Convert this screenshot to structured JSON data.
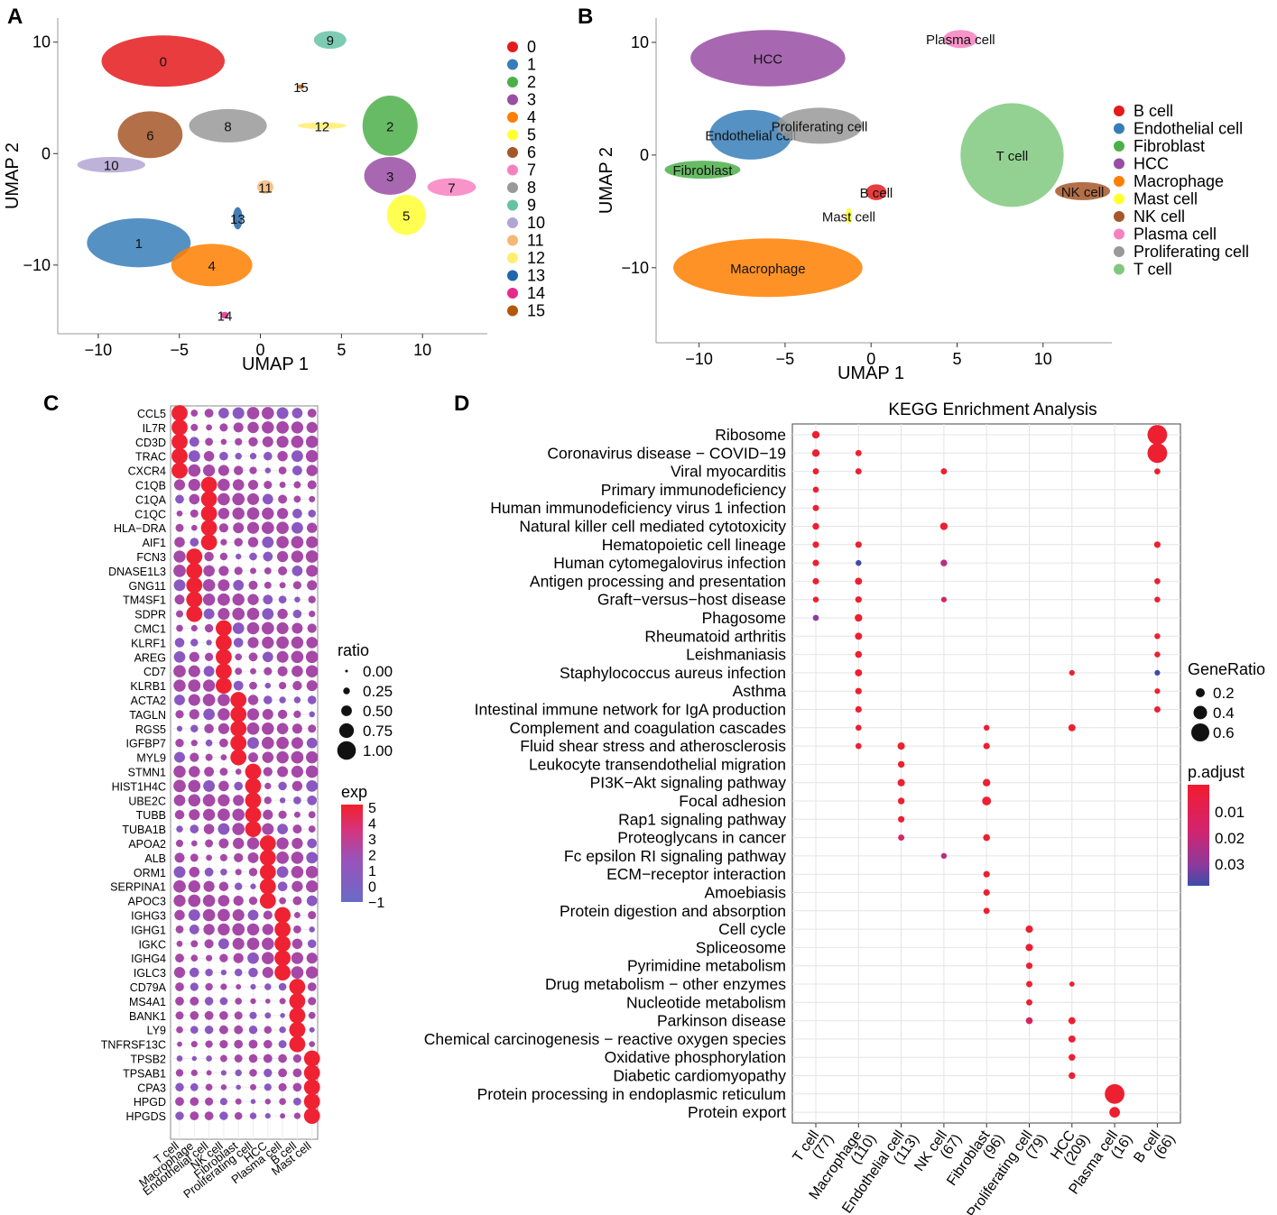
{
  "chart_data": [
    {
      "panel": "A",
      "type": "scatter",
      "xlabel": "UMAP 1",
      "ylabel": "UMAP 2",
      "xlim": [
        -12.5,
        14
      ],
      "ylim": [
        -16,
        12
      ],
      "xticks": [
        -10,
        -5,
        0,
        5,
        10
      ],
      "yticks": [
        10,
        0,
        -10
      ],
      "legend": [
        {
          "label": "0",
          "color": "#e41a1c"
        },
        {
          "label": "1",
          "color": "#377eb8"
        },
        {
          "label": "2",
          "color": "#4daf4a"
        },
        {
          "label": "3",
          "color": "#984ea3"
        },
        {
          "label": "4",
          "color": "#ff7f00"
        },
        {
          "label": "5",
          "color": "#ffff33"
        },
        {
          "label": "6",
          "color": "#a65628"
        },
        {
          "label": "7",
          "color": "#f781bf"
        },
        {
          "label": "8",
          "color": "#999999"
        },
        {
          "label": "9",
          "color": "#66c2a5"
        },
        {
          "label": "10",
          "color": "#b3a5d3"
        },
        {
          "label": "11",
          "color": "#f5b776"
        },
        {
          "label": "12",
          "color": "#ffed6f"
        },
        {
          "label": "13",
          "color": "#2166ac"
        },
        {
          "label": "14",
          "color": "#e7298a"
        },
        {
          "label": "15",
          "color": "#b35806"
        }
      ],
      "clusters": [
        {
          "label": "0",
          "color": "#e41a1c",
          "x": -6,
          "y": 8.3,
          "rx": 3.8,
          "ry": 2.3
        },
        {
          "label": "1",
          "color": "#377eb8",
          "x": -7.5,
          "y": -8,
          "rx": 3.2,
          "ry": 2.2
        },
        {
          "label": "2",
          "color": "#4daf4a",
          "x": 8,
          "y": 2.5,
          "rx": 1.7,
          "ry": 2.7
        },
        {
          "label": "3",
          "color": "#984ea3",
          "x": 8,
          "y": -2,
          "rx": 1.6,
          "ry": 1.7
        },
        {
          "label": "4",
          "color": "#ff7f00",
          "x": -3,
          "y": -10,
          "rx": 2.5,
          "ry": 1.9
        },
        {
          "label": "5",
          "color": "#ffff33",
          "x": 9,
          "y": -5.5,
          "rx": 1.2,
          "ry": 1.8
        },
        {
          "label": "6",
          "color": "#a65628",
          "x": -6.8,
          "y": 1.7,
          "rx": 2,
          "ry": 2.1
        },
        {
          "label": "7",
          "color": "#f781bf",
          "x": 11.8,
          "y": -3,
          "rx": 1.5,
          "ry": 0.8
        },
        {
          "label": "8",
          "color": "#999999",
          "x": -2,
          "y": 2.5,
          "rx": 2.4,
          "ry": 1.5
        },
        {
          "label": "9",
          "color": "#66c2a5",
          "x": 4.3,
          "y": 10.2,
          "rx": 1.0,
          "ry": 0.8
        },
        {
          "label": "10",
          "color": "#b3a5d3",
          "x": -9.2,
          "y": -1,
          "rx": 2.1,
          "ry": 0.7
        },
        {
          "label": "11",
          "color": "#f5b776",
          "x": 0.3,
          "y": -3,
          "rx": 0.5,
          "ry": 0.6
        },
        {
          "label": "12",
          "color": "#ffed6f",
          "x": 3.8,
          "y": 2.5,
          "rx": 1.5,
          "ry": 0.3
        },
        {
          "label": "13",
          "color": "#2166ac",
          "x": -1.4,
          "y": -5.8,
          "rx": 0.3,
          "ry": 1.0
        },
        {
          "label": "14",
          "color": "#e7298a",
          "x": -2.2,
          "y": -14.5,
          "rx": 0.25,
          "ry": 0.3
        },
        {
          "label": "15",
          "color": "#b35806",
          "x": 2.5,
          "y": 6,
          "rx": 0.2,
          "ry": 0.2
        }
      ]
    },
    {
      "panel": "B",
      "type": "scatter",
      "xlabel": "UMAP 1",
      "ylabel": "UMAP 2",
      "xlim": [
        -12.5,
        14
      ],
      "ylim": [
        -16.5,
        12
      ],
      "xticks": [
        -10,
        -5,
        0,
        5,
        10
      ],
      "yticks": [
        10,
        0,
        -10
      ],
      "legend": [
        {
          "label": "B cell",
          "color": "#e41a1c"
        },
        {
          "label": "Endothelial cell",
          "color": "#377eb8"
        },
        {
          "label": "Fibroblast",
          "color": "#4daf4a"
        },
        {
          "label": "HCC",
          "color": "#984ea3"
        },
        {
          "label": "Macrophage",
          "color": "#ff7f00"
        },
        {
          "label": "Mast cell",
          "color": "#ffff33"
        },
        {
          "label": "NK cell",
          "color": "#a65628"
        },
        {
          "label": "Plasma cell",
          "color": "#f781bf"
        },
        {
          "label": "Proliferating cell",
          "color": "#999999"
        },
        {
          "label": "T cell",
          "color": "#7fc97f"
        }
      ],
      "clusters": [
        {
          "label": "HCC",
          "color": "#984ea3",
          "x": -6,
          "y": 8.6,
          "rx": 4.5,
          "ry": 2.5
        },
        {
          "label": "Endothelial cell",
          "color": "#377eb8",
          "x": -7,
          "y": 1.8,
          "rx": 2.4,
          "ry": 2.2
        },
        {
          "label": "Proliferating cell",
          "color": "#999999",
          "x": -3,
          "y": 2.6,
          "rx": 2.5,
          "ry": 1.6
        },
        {
          "label": "Fibroblast",
          "color": "#4daf4a",
          "x": -9.8,
          "y": -1.3,
          "rx": 2.2,
          "ry": 0.8
        },
        {
          "label": "Macrophage",
          "color": "#ff7f00",
          "x": -6,
          "y": -10,
          "rx": 5.5,
          "ry": 2.6
        },
        {
          "label": "B cell",
          "color": "#e41a1c",
          "x": 0.3,
          "y": -3.3,
          "rx": 0.6,
          "ry": 0.7
        },
        {
          "label": "T cell",
          "color": "#7fc97f",
          "x": 8.2,
          "y": 0,
          "rx": 3.0,
          "ry": 4.6
        },
        {
          "label": "NK cell",
          "color": "#a65628",
          "x": 12.3,
          "y": -3.2,
          "rx": 1.6,
          "ry": 0.8
        },
        {
          "label": "Plasma cell",
          "color": "#f781bf",
          "x": 5.2,
          "y": 10.3,
          "rx": 1.0,
          "ry": 0.8
        },
        {
          "label": "Mast cell",
          "color": "#ffff33",
          "x": -1.3,
          "y": -5.4,
          "rx": 0.2,
          "ry": 0.7
        }
      ]
    },
    {
      "panel": "C",
      "type": "dotplot",
      "genes": [
        "CCL5",
        "IL7R",
        "CD3D",
        "TRAC",
        "CXCR4",
        "C1QB",
        "C1QA",
        "C1QC",
        "HLA−DRA",
        "AIF1",
        "FCN3",
        "DNASE1L3",
        "GNG11",
        "TM4SF1",
        "SDPR",
        "CMC1",
        "KLRF1",
        "AREG",
        "CD7",
        "KLRB1",
        "ACTA2",
        "TAGLN",
        "RGS5",
        "IGFBP7",
        "MYL9",
        "STMN1",
        "HIST1H4C",
        "UBE2C",
        "TUBB",
        "TUBA1B",
        "APOA2",
        "ALB",
        "ORM1",
        "SERPINA1",
        "APOC3",
        "IGHG3",
        "IGHG1",
        "IGKC",
        "IGHG4",
        "IGLC3",
        "CD79A",
        "MS4A1",
        "BANK1",
        "LY9",
        "TNFRSF13C",
        "TPSB2",
        "TPSAB1",
        "CPA3",
        "HPGD",
        "HPGDS"
      ],
      "groups": [
        "T cell",
        "Macrophage",
        "Endothelial cell",
        "NK cell",
        "Fibroblast",
        "Proliferating cell",
        "HCC",
        "Plasma cell",
        "B cell",
        "Mast cell"
      ],
      "gene_blocks": [
        [
          0,
          4
        ],
        [
          5,
          9
        ],
        [
          10,
          14
        ],
        [
          15,
          19
        ],
        [
          20,
          24
        ],
        [
          25,
          29
        ],
        [
          30,
          34
        ],
        [
          35,
          39
        ],
        [
          40,
          44
        ],
        [
          45,
          49
        ]
      ],
      "marker_group": [
        0,
        2,
        1,
        3,
        4,
        5,
        6,
        7,
        8,
        9
      ],
      "legend_ratio_title": "ratio",
      "legend_ratio": [
        "0.00",
        "0.25",
        "0.50",
        "0.75",
        "1.00"
      ],
      "legend_exp_title": "exp",
      "legend_exp": [
        "5",
        "4",
        "3",
        "2",
        "1",
        "0",
        "−1"
      ]
    },
    {
      "panel": "D",
      "type": "dotplot",
      "title": "KEGG Enrichment Analysis",
      "groups": [
        {
          "name": "T cell",
          "n": "(77)"
        },
        {
          "name": "Macrophage",
          "n": "(110)"
        },
        {
          "name": "Endothelial cell",
          "n": "(113)"
        },
        {
          "name": "NK cell",
          "n": "(67)"
        },
        {
          "name": "Fibroblast",
          "n": "(96)"
        },
        {
          "name": "Proliferating cell",
          "n": "(79)"
        },
        {
          "name": "HCC",
          "n": "(209)"
        },
        {
          "name": "Plasma cell",
          "n": "(16)"
        },
        {
          "name": "B cell",
          "n": "(66)"
        }
      ],
      "pathways": [
        "Ribosome",
        "Coronavirus disease − COVID−19",
        "Viral myocarditis",
        "Primary immunodeficiency",
        "Human immunodeficiency virus 1 infection",
        "Natural killer cell mediated cytotoxicity",
        "Hematopoietic cell lineage",
        "Human cytomegalovirus infection",
        "Antigen processing and presentation",
        "Graft−versus−host disease",
        "Phagosome",
        "Rheumatoid arthritis",
        "Leishmaniasis",
        "Staphylococcus aureus infection",
        "Asthma",
        "Intestinal immune network for IgA production",
        "Complement and coagulation cascades",
        "Fluid shear stress and atherosclerosis",
        "Leukocyte transendothelial migration",
        "PI3K−Akt signaling pathway",
        "Focal adhesion",
        "Rap1 signaling pathway",
        "Proteoglycans in cancer",
        "Fc epsilon RI signaling pathway",
        "ECM−receptor interaction",
        "Amoebiasis",
        "Protein digestion and absorption",
        "Cell cycle",
        "Spliceosome",
        "Pyrimidine metabolism",
        "Drug metabolism − other enzymes",
        "Nucleotide metabolism",
        "Parkinson disease",
        "Chemical carcinogenesis − reactive oxygen species",
        "Oxidative phosphorylation",
        "Diabetic cardiomyopathy",
        "Protein processing in endoplasmic reticulum",
        "Protein export"
      ],
      "points": [
        [
          0,
          0,
          0.14,
          0.002
        ],
        [
          0,
          8,
          0.7,
          0.002
        ],
        [
          1,
          0,
          0.14,
          0.002
        ],
        [
          1,
          1,
          0.08,
          0.002
        ],
        [
          1,
          8,
          0.7,
          0.002
        ],
        [
          2,
          0,
          0.08,
          0.002
        ],
        [
          2,
          1,
          0.08,
          0.002
        ],
        [
          2,
          3,
          0.08,
          0.002
        ],
        [
          2,
          8,
          0.07,
          0.002
        ],
        [
          3,
          0,
          0.07,
          0.002
        ],
        [
          4,
          0,
          0.08,
          0.002
        ],
        [
          5,
          0,
          0.1,
          0.002
        ],
        [
          5,
          3,
          0.14,
          0.002
        ],
        [
          6,
          0,
          0.09,
          0.002
        ],
        [
          6,
          1,
          0.09,
          0.002
        ],
        [
          6,
          8,
          0.09,
          0.002
        ],
        [
          7,
          0,
          0.09,
          0.002
        ],
        [
          7,
          1,
          0.06,
          0.035
        ],
        [
          7,
          3,
          0.1,
          0.02
        ],
        [
          8,
          0,
          0.09,
          0.002
        ],
        [
          8,
          1,
          0.12,
          0.002
        ],
        [
          8,
          8,
          0.07,
          0.002
        ],
        [
          9,
          0,
          0.06,
          0.002
        ],
        [
          9,
          1,
          0.09,
          0.002
        ],
        [
          9,
          3,
          0.05,
          0.012
        ],
        [
          9,
          8,
          0.06,
          0.002
        ],
        [
          10,
          0,
          0.07,
          0.028
        ],
        [
          10,
          1,
          0.14,
          0.002
        ],
        [
          11,
          1,
          0.12,
          0.002
        ],
        [
          11,
          8,
          0.06,
          0.002
        ],
        [
          12,
          1,
          0.11,
          0.002
        ],
        [
          12,
          8,
          0.06,
          0.002
        ],
        [
          13,
          1,
          0.12,
          0.002
        ],
        [
          13,
          6,
          0.05,
          0.002
        ],
        [
          13,
          8,
          0.05,
          0.035
        ],
        [
          14,
          1,
          0.09,
          0.002
        ],
        [
          14,
          8,
          0.05,
          0.002
        ],
        [
          15,
          1,
          0.09,
          0.002
        ],
        [
          15,
          8,
          0.08,
          0.002
        ],
        [
          16,
          1,
          0.07,
          0.002
        ],
        [
          16,
          4,
          0.06,
          0.002
        ],
        [
          16,
          6,
          0.12,
          0.002
        ],
        [
          17,
          1,
          0.07,
          0.002
        ],
        [
          17,
          2,
          0.13,
          0.002
        ],
        [
          17,
          4,
          0.09,
          0.002
        ],
        [
          18,
          2,
          0.1,
          0.002
        ],
        [
          19,
          2,
          0.13,
          0.002
        ],
        [
          19,
          4,
          0.14,
          0.002
        ],
        [
          20,
          2,
          0.1,
          0.002
        ],
        [
          20,
          4,
          0.2,
          0.002
        ],
        [
          21,
          2,
          0.09,
          0.002
        ],
        [
          22,
          2,
          0.08,
          0.012
        ],
        [
          22,
          4,
          0.11,
          0.002
        ],
        [
          23,
          3,
          0.06,
          0.015
        ],
        [
          24,
          4,
          0.09,
          0.002
        ],
        [
          25,
          4,
          0.09,
          0.002
        ],
        [
          26,
          4,
          0.08,
          0.002
        ],
        [
          27,
          5,
          0.13,
          0.002
        ],
        [
          28,
          5,
          0.13,
          0.002
        ],
        [
          29,
          5,
          0.09,
          0.002
        ],
        [
          30,
          5,
          0.08,
          0.002
        ],
        [
          30,
          6,
          0.03,
          0.002
        ],
        [
          31,
          5,
          0.08,
          0.002
        ],
        [
          32,
          5,
          0.11,
          0.008
        ],
        [
          32,
          6,
          0.12,
          0.002
        ],
        [
          33,
          6,
          0.12,
          0.002
        ],
        [
          34,
          6,
          0.1,
          0.002
        ],
        [
          35,
          6,
          0.1,
          0.002
        ],
        [
          36,
          7,
          0.7,
          0.002
        ],
        [
          37,
          7,
          0.28,
          0.002
        ]
      ],
      "legend_size_title": "GeneRatio",
      "legend_size": [
        "0.2",
        "0.4",
        "0.6"
      ],
      "legend_color_title": "p.adjust",
      "legend_color": [
        "0.01",
        "0.02",
        "0.03"
      ]
    }
  ],
  "panel_labels": [
    "A",
    "B",
    "C",
    "D"
  ],
  "colors": {
    "high": "#e8232f",
    "mid": "#c02a7a",
    "low": "#3b4ca8"
  }
}
